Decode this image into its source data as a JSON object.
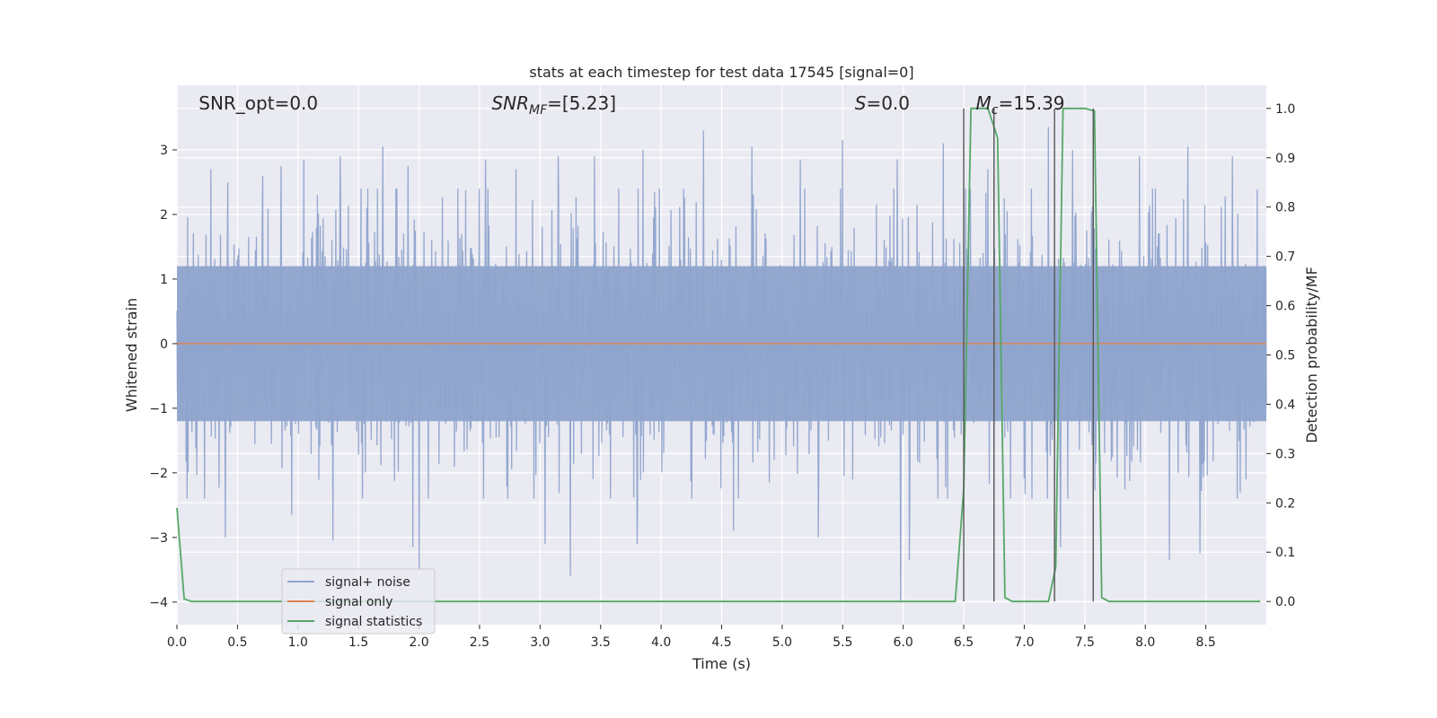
{
  "chart_data": {
    "type": "line",
    "title": "stats at each timestep for test data 17545 [signal=0]",
    "xlabel": "Time (s)",
    "ylabel": "Whitened strain",
    "y2label": "Detection probability/MF",
    "xlim": [
      0.0,
      9.0
    ],
    "ylim": [
      -4.35,
      4.0
    ],
    "y2lim": [
      -0.047,
      1.047
    ],
    "xticks": [
      "0.0",
      "0.5",
      "1.0",
      "1.5",
      "2.0",
      "2.5",
      "3.0",
      "3.5",
      "4.0",
      "4.5",
      "5.0",
      "5.5",
      "6.0",
      "6.5",
      "7.0",
      "7.5",
      "8.0",
      "8.5"
    ],
    "yticks": [
      "3",
      "2",
      "1",
      "0",
      "−1",
      "−2",
      "−3",
      "−4"
    ],
    "y2ticks": [
      "1.0",
      "0.9",
      "0.8",
      "0.7",
      "0.6",
      "0.5",
      "0.4",
      "0.3",
      "0.2",
      "0.1",
      "0.0"
    ],
    "grid": true,
    "legend_position": "lower-left",
    "annotations": [
      {
        "label": "SNR_opt=0.0",
        "x": 0.18
      },
      {
        "label_main": "SNR",
        "label_sub": "MF",
        "label_rest": "=[5.23]",
        "x": 2.6
      },
      {
        "label_main": "S",
        "label_sub": "",
        "label_rest": "=0.0",
        "x": 5.6
      },
      {
        "label_main": "M",
        "label_sub": "c",
        "label_rest": "=15.39",
        "x": 6.6
      }
    ],
    "series": [
      {
        "name": "signal+ noise",
        "color": "#8fa4cc",
        "kind": "noise",
        "sample_count": 2250,
        "band_1sigma": 1.2,
        "peaks": [
          [
            0.28,
            2.7
          ],
          [
            0.42,
            2.5
          ],
          [
            0.71,
            2.6
          ],
          [
            0.86,
            2.75
          ],
          [
            1.05,
            2.85
          ],
          [
            1.35,
            2.9
          ],
          [
            1.7,
            3.05
          ],
          [
            1.91,
            2.75
          ],
          [
            2.55,
            2.85
          ],
          [
            2.8,
            2.7
          ],
          [
            3.15,
            2.9
          ],
          [
            3.45,
            2.9
          ],
          [
            3.85,
            3.0
          ],
          [
            4.35,
            3.3
          ],
          [
            4.75,
            3.05
          ],
          [
            5.15,
            2.85
          ],
          [
            5.5,
            3.15
          ],
          [
            5.95,
            2.85
          ],
          [
            6.33,
            3.1
          ],
          [
            6.7,
            2.7
          ],
          [
            7.2,
            3.35
          ],
          [
            7.4,
            3.0
          ],
          [
            7.95,
            2.9
          ],
          [
            8.35,
            3.05
          ],
          [
            8.72,
            2.9
          ]
        ],
        "troughs": [
          [
            0.4,
            -3.0
          ],
          [
            0.95,
            -2.65
          ],
          [
            1.29,
            -3.05
          ],
          [
            1.95,
            -3.15
          ],
          [
            2.0,
            -3.5
          ],
          [
            3.04,
            -3.1
          ],
          [
            3.25,
            -3.6
          ],
          [
            3.8,
            -3.1
          ],
          [
            4.6,
            -2.9
          ],
          [
            5.3,
            -3.0
          ],
          [
            5.98,
            -4.0
          ],
          [
            6.05,
            -3.35
          ],
          [
            7.3,
            -3.15
          ],
          [
            8.2,
            -3.35
          ],
          [
            8.45,
            -3.25
          ]
        ]
      },
      {
        "name": "signal only",
        "color": "#dd8452",
        "kind": "line",
        "x": [
          0.0,
          9.0
        ],
        "y": [
          0.0,
          0.0
        ]
      },
      {
        "name": "signal statistics",
        "color": "#55a868",
        "kind": "line",
        "axis": "right",
        "x": [
          0.0,
          0.06,
          0.12,
          0.5,
          1.0,
          2.0,
          3.0,
          4.0,
          5.0,
          6.0,
          6.43,
          6.5,
          6.56,
          6.7,
          6.78,
          6.84,
          6.9,
          7.0,
          7.2,
          7.26,
          7.32,
          7.5,
          7.58,
          7.64,
          7.7,
          8.0,
          8.5,
          8.95
        ],
        "y": [
          0.19,
          0.005,
          0.0,
          0.0,
          0.0,
          0.0,
          0.0,
          0.0,
          0.0,
          0.0,
          0.0,
          0.23,
          1.0,
          1.0,
          0.94,
          0.008,
          0.0,
          0.0,
          0.0,
          0.07,
          1.0,
          1.0,
          0.995,
          0.008,
          0.0,
          0.0,
          0.0,
          0.0
        ]
      }
    ],
    "vertical_markers": {
      "color": "#555555",
      "x": [
        6.5,
        6.75,
        7.25,
        7.57
      ],
      "y_top": 1.0,
      "y_bottom": 0.0
    }
  }
}
